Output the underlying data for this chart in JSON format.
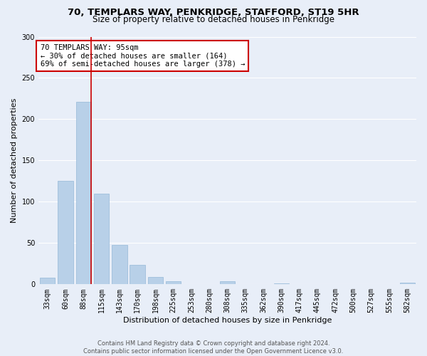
{
  "title": "70, TEMPLARS WAY, PENKRIDGE, STAFFORD, ST19 5HR",
  "subtitle": "Size of property relative to detached houses in Penkridge",
  "xlabel": "Distribution of detached houses by size in Penkridge",
  "ylabel": "Number of detached properties",
  "bin_labels": [
    "33sqm",
    "60sqm",
    "88sqm",
    "115sqm",
    "143sqm",
    "170sqm",
    "198sqm",
    "225sqm",
    "253sqm",
    "280sqm",
    "308sqm",
    "335sqm",
    "362sqm",
    "390sqm",
    "417sqm",
    "445sqm",
    "472sqm",
    "500sqm",
    "527sqm",
    "555sqm",
    "582sqm"
  ],
  "bar_values": [
    8,
    125,
    221,
    110,
    48,
    24,
    9,
    4,
    0,
    0,
    4,
    0,
    0,
    1,
    0,
    0,
    0,
    0,
    0,
    0,
    2
  ],
  "bar_color": "#b8d0e8",
  "bar_edge_color": "#95b8d8",
  "vline_color": "#cc0000",
  "annotation_title": "70 TEMPLARS WAY: 95sqm",
  "annotation_line1": "← 30% of detached houses are smaller (164)",
  "annotation_line2": "69% of semi-detached houses are larger (378) →",
  "annotation_box_color": "#ffffff",
  "annotation_box_edge_color": "#cc0000",
  "ylim": [
    0,
    300
  ],
  "yticks": [
    0,
    50,
    100,
    150,
    200,
    250,
    300
  ],
  "footer_line1": "Contains HM Land Registry data © Crown copyright and database right 2024.",
  "footer_line2": "Contains public sector information licensed under the Open Government Licence v3.0.",
  "title_fontsize": 9.5,
  "subtitle_fontsize": 8.5,
  "axis_label_fontsize": 8,
  "tick_fontsize": 7,
  "annotation_fontsize": 7.5,
  "footer_fontsize": 6,
  "bg_color": "#e8eef8",
  "plot_bg_color": "#e8eef8",
  "grid_color": "#ffffff",
  "num_bins": 21,
  "vline_pos": 2.42
}
